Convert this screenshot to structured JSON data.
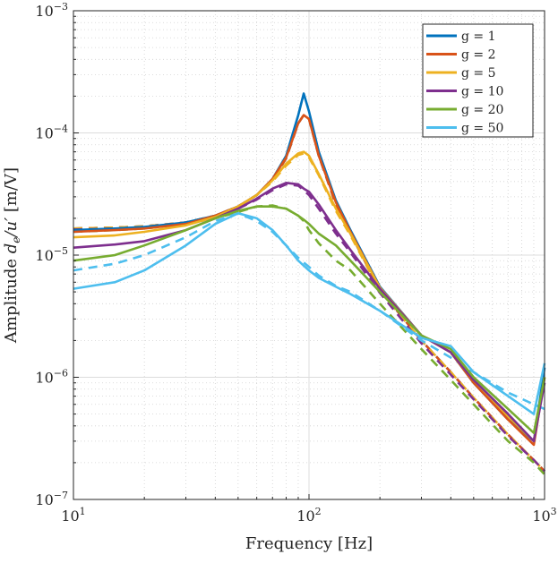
{
  "chart_data": {
    "type": "line",
    "xlabel": "Frequency [Hz]",
    "ylabel": "Amplitude d_e/u' [m/V]",
    "ylabel_parts": {
      "prefix": "Amplitude ",
      "math": "d",
      "sub": "e",
      "mid": "/u′",
      "suffix": " [m/V]"
    },
    "xscale": "log",
    "yscale": "log",
    "xlim": [
      10,
      1000
    ],
    "ylim": [
      1e-07,
      0.001
    ],
    "grid": true,
    "legend_position": "top-right",
    "x_ticks": [
      {
        "base": "10",
        "exp": "1",
        "value": 10
      },
      {
        "base": "10",
        "exp": "2",
        "value": 100
      },
      {
        "base": "10",
        "exp": "3",
        "value": 1000
      }
    ],
    "y_ticks": [
      {
        "base": "10",
        "exp": "−7",
        "value": 1e-07
      },
      {
        "base": "10",
        "exp": "−6",
        "value": 1e-06
      },
      {
        "base": "10",
        "exp": "−5",
        "value": 1e-05
      },
      {
        "base": "10",
        "exp": "−4",
        "value": 0.0001
      },
      {
        "base": "10",
        "exp": "−3",
        "value": 0.001
      }
    ],
    "x": [
      10,
      15,
      20,
      30,
      40,
      50,
      60,
      70,
      80,
      90,
      95,
      100,
      110,
      130,
      150,
      200,
      300,
      400,
      500,
      700,
      900,
      1000
    ],
    "series": [
      {
        "name": "g = 1",
        "color": "#0072BD",
        "style": "solid",
        "values": [
          1.6e-05,
          1.65e-05,
          1.7e-05,
          1.85e-05,
          2.1e-05,
          2.5e-05,
          3.1e-05,
          4.2e-05,
          6.5e-05,
          0.00014,
          0.00021,
          0.00015,
          7e-05,
          2.8e-05,
          1.6e-05,
          5.5e-06,
          2.2e-06,
          1.6e-06,
          9e-07,
          4.5e-07,
          3e-07,
          1.2e-06
        ]
      },
      {
        "name": "g = 2",
        "color": "#D95319",
        "style": "solid",
        "values": [
          1.55e-05,
          1.6e-05,
          1.65e-05,
          1.8e-05,
          2.1e-05,
          2.5e-05,
          3.1e-05,
          4.2e-05,
          6.3e-05,
          0.00012,
          0.00014,
          0.00013,
          6.5e-05,
          2.7e-05,
          1.55e-05,
          5.4e-06,
          2.2e-06,
          1.6e-06,
          9e-07,
          4.5e-07,
          2.8e-07,
          1e-06
        ]
      },
      {
        "name": "g = 5",
        "color": "#EDB120",
        "style": "solid",
        "values": [
          1.4e-05,
          1.45e-05,
          1.55e-05,
          1.75e-05,
          2.05e-05,
          2.5e-05,
          3.1e-05,
          4.1e-05,
          5.6e-05,
          6.8e-05,
          7e-05,
          6.5e-05,
          4.6e-05,
          2.4e-05,
          1.5e-05,
          5.4e-06,
          2.2e-06,
          1.6e-06,
          9.5e-07,
          4.8e-07,
          3e-07,
          1e-06
        ]
      },
      {
        "name": "g = 10",
        "color": "#7E2F8E",
        "style": "solid",
        "values": [
          1.15e-05,
          1.22e-05,
          1.3e-05,
          1.6e-05,
          2e-05,
          2.4e-05,
          2.9e-05,
          3.5e-05,
          3.9e-05,
          3.8e-05,
          3.5e-05,
          3.3e-05,
          2.6e-05,
          1.6e-05,
          1.1e-05,
          5.3e-06,
          2.2e-06,
          1.6e-06,
          9.5e-07,
          5e-07,
          3e-07,
          9e-07
        ]
      },
      {
        "name": "g = 20",
        "color": "#77AC30",
        "style": "solid",
        "values": [
          9e-06,
          1e-05,
          1.2e-05,
          1.6e-05,
          2e-05,
          2.3e-05,
          2.5e-05,
          2.5e-05,
          2.4e-05,
          2.1e-05,
          1.95e-05,
          1.8e-05,
          1.5e-05,
          1.2e-05,
          9e-06,
          5e-06,
          2.2e-06,
          1.7e-06,
          1e-06,
          5.5e-07,
          3.5e-07,
          1e-06
        ]
      },
      {
        "name": "g = 50",
        "color": "#4DBEEE",
        "style": "solid",
        "values": [
          5.3e-06,
          6e-06,
          7.5e-06,
          1.2e-05,
          1.8e-05,
          2.2e-05,
          2e-05,
          1.6e-05,
          1.2e-05,
          9e-06,
          8.2e-06,
          7.5e-06,
          6.5e-06,
          5.5e-06,
          4.8e-06,
          3.5e-06,
          2.1e-06,
          1.8e-06,
          1.1e-06,
          7e-07,
          5e-07,
          1.3e-06
        ]
      },
      {
        "color": "#0072BD",
        "style": "dashed",
        "values": [
          1.65e-05,
          1.68e-05,
          1.72e-05,
          1.85e-05,
          2.1e-05,
          2.5e-05,
          3.1e-05,
          4.1e-05,
          6.2e-05,
          0.00012,
          0.00014,
          0.00013,
          6.5e-05,
          2.6e-05,
          1.5e-05,
          5.2e-06,
          2e-06,
          1.1e-06,
          6.8e-07,
          3.4e-07,
          2.1e-07,
          1.7e-07
        ]
      },
      {
        "color": "#D95319",
        "style": "dashed",
        "values": [
          1.65e-05,
          1.68e-05,
          1.72e-05,
          1.85e-05,
          2.1e-05,
          2.5e-05,
          3.1e-05,
          4.1e-05,
          6.2e-05,
          0.00012,
          0.00014,
          0.00013,
          6.5e-05,
          2.6e-05,
          1.5e-05,
          5.2e-06,
          2e-06,
          1.1e-06,
          6.8e-07,
          3.4e-07,
          2.1e-07,
          1.7e-07
        ]
      },
      {
        "color": "#EDB120",
        "style": "dashed",
        "values": [
          1.65e-05,
          1.68e-05,
          1.72e-05,
          1.85e-05,
          2.1e-05,
          2.5e-05,
          3.1e-05,
          4e-05,
          5.4e-05,
          6.6e-05,
          6.8e-05,
          6.3e-05,
          4.5e-05,
          2.3e-05,
          1.45e-05,
          5.1e-06,
          2e-06,
          1.1e-06,
          6.8e-07,
          3.4e-07,
          2.1e-07,
          1.7e-07
        ]
      },
      {
        "color": "#7E2F8E",
        "style": "dashed",
        "values": [
          1.62e-05,
          1.65e-05,
          1.7e-05,
          1.85e-05,
          2.05e-05,
          2.4e-05,
          2.85e-05,
          3.4e-05,
          3.8e-05,
          3.7e-05,
          3.4e-05,
          3.1e-05,
          2.4e-05,
          1.5e-05,
          1.05e-05,
          4.9e-06,
          1.9e-06,
          1.05e-06,
          6.6e-07,
          3.3e-07,
          2.1e-07,
          1.7e-07
        ]
      },
      {
        "color": "#77AC30",
        "style": "dashed",
        "values": [
          1.55e-05,
          1.6e-05,
          1.65e-05,
          1.8e-05,
          2e-05,
          2.25e-05,
          2.5e-05,
          2.55e-05,
          2.4e-05,
          2.1e-05,
          1.9e-05,
          1.6e-05,
          1.25e-05,
          9e-06,
          7.5e-06,
          4e-06,
          1.7e-06,
          9.5e-07,
          6e-07,
          3e-07,
          2e-07,
          1.6e-07
        ]
      },
      {
        "color": "#4DBEEE",
        "style": "dashed",
        "values": [
          7.5e-06,
          8.5e-06,
          1e-05,
          1.4e-05,
          1.9e-05,
          2.2e-05,
          1.9e-05,
          1.55e-05,
          1.2e-05,
          9.5e-06,
          8.7e-06,
          8e-06,
          6.8e-06,
          5.6e-06,
          5e-06,
          3.5e-06,
          2e-06,
          1.45e-06,
          1.1e-06,
          7.5e-07,
          6e-07,
          5.5e-07
        ]
      }
    ]
  }
}
